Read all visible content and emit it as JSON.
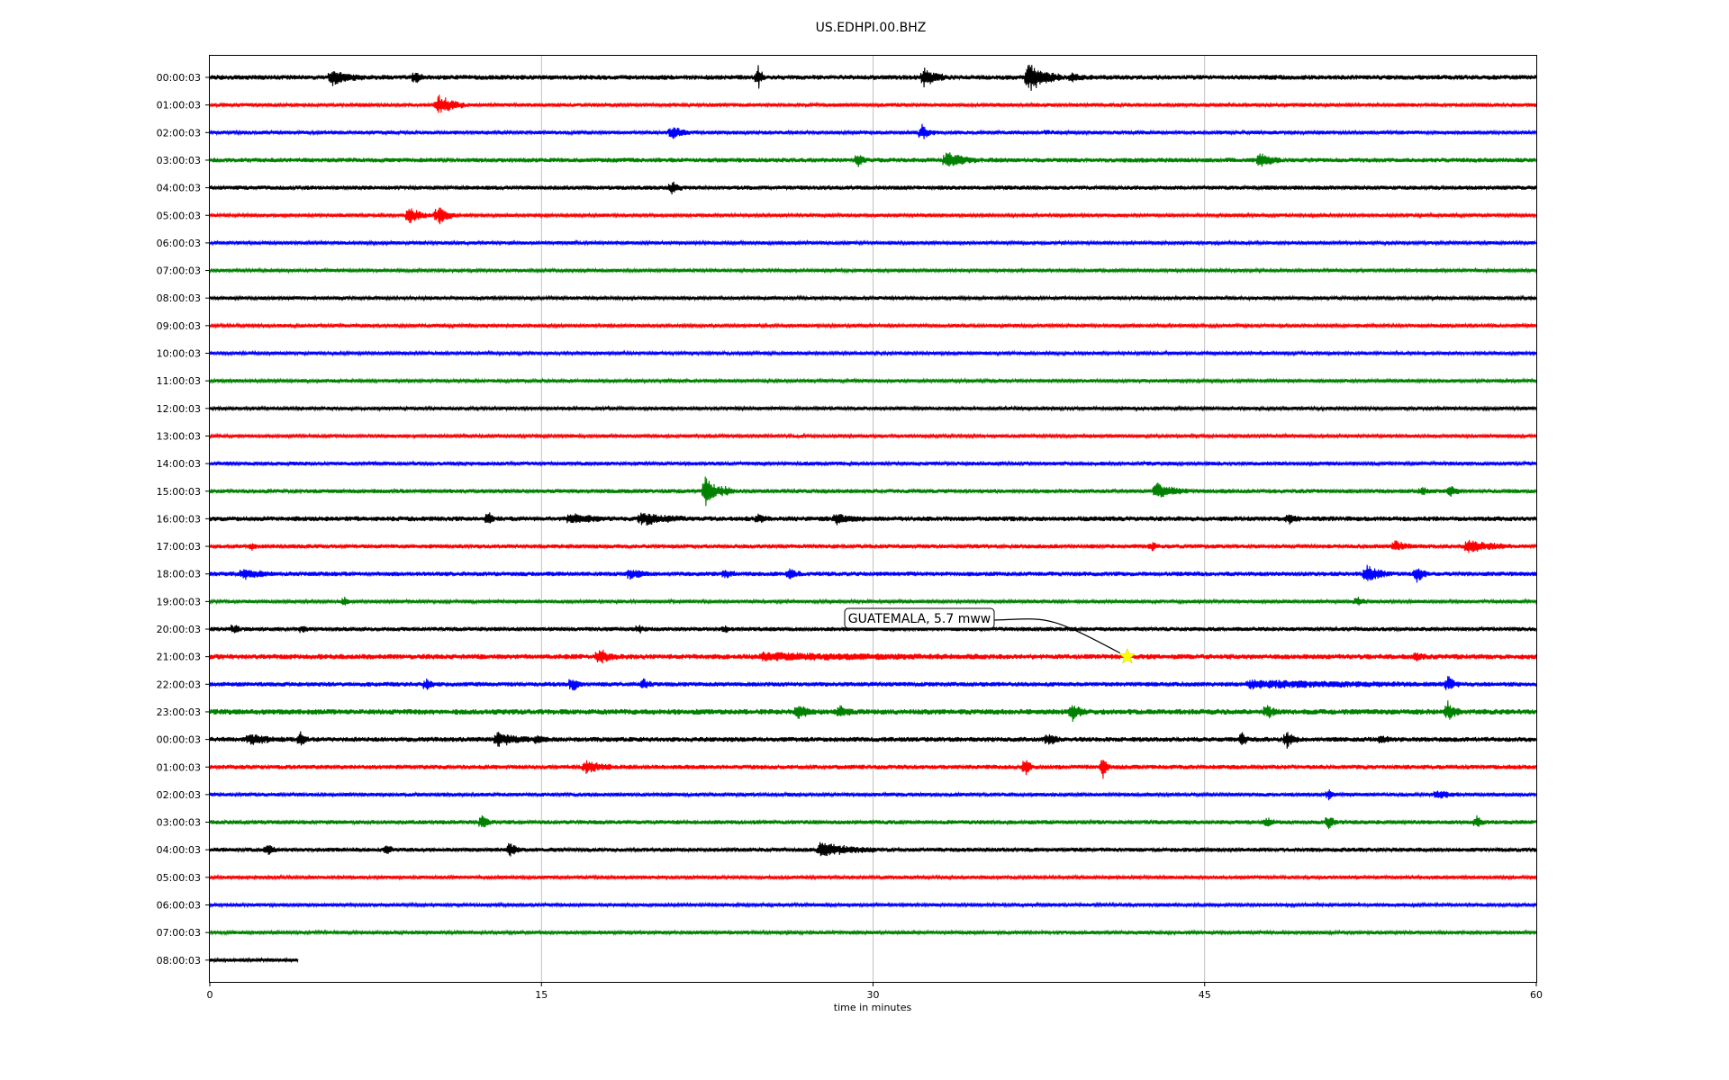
{
  "chart_data": {
    "type": "line",
    "title": "US.EDHPI.00.BHZ",
    "xlabel": "time in minutes",
    "ylabel": "",
    "xlim": [
      0,
      60
    ],
    "x_ticks": [
      0,
      15,
      30,
      45,
      60
    ],
    "x_tick_labels": [
      "0",
      "15",
      "30",
      "45",
      "60"
    ],
    "grid": "vertical",
    "trace_colors": [
      "#000000",
      "#ff0000",
      "#0000ff",
      "#008000"
    ],
    "rows": [
      {
        "label": "00:00:03",
        "end_min": 60,
        "noise": 0.28,
        "events": [
          {
            "t": 5.5,
            "a": 0.9,
            "w": 1.5
          },
          {
            "t": 9.3,
            "a": 0.8,
            "w": 0.4
          },
          {
            "t": 24.8,
            "a": 1.6,
            "w": 0.3
          },
          {
            "t": 32.3,
            "a": 1.2,
            "w": 1.0
          },
          {
            "t": 37.0,
            "a": 1.8,
            "w": 1.5
          },
          {
            "t": 39.0,
            "a": 0.6,
            "w": 0.5
          }
        ]
      },
      {
        "label": "01:00:03",
        "end_min": 60,
        "noise": 0.22,
        "events": [
          {
            "t": 10.3,
            "a": 1.4,
            "w": 1.2
          }
        ]
      },
      {
        "label": "02:00:03",
        "end_min": 60,
        "noise": 0.22,
        "events": [
          {
            "t": 20.9,
            "a": 0.9,
            "w": 0.8
          },
          {
            "t": 32.2,
            "a": 0.9,
            "w": 0.6
          },
          {
            "t": 37.9,
            "a": 0.3,
            "w": 0.3
          }
        ]
      },
      {
        "label": "03:00:03",
        "end_min": 60,
        "noise": 0.26,
        "events": [
          {
            "t": 29.3,
            "a": 0.9,
            "w": 0.4
          },
          {
            "t": 33.3,
            "a": 1.0,
            "w": 1.4
          },
          {
            "t": 47.5,
            "a": 0.9,
            "w": 0.9
          }
        ]
      },
      {
        "label": "04:00:03",
        "end_min": 60,
        "noise": 0.24,
        "events": [
          {
            "t": 20.9,
            "a": 0.8,
            "w": 0.5
          }
        ]
      },
      {
        "label": "05:00:03",
        "end_min": 60,
        "noise": 0.2,
        "events": [
          {
            "t": 9.0,
            "a": 1.0,
            "w": 1.0
          },
          {
            "t": 10.3,
            "a": 1.3,
            "w": 0.8
          }
        ]
      },
      {
        "label": "06:00:03",
        "end_min": 60,
        "noise": 0.2,
        "events": []
      },
      {
        "label": "07:00:03",
        "end_min": 60,
        "noise": 0.2,
        "events": []
      },
      {
        "label": "08:00:03",
        "end_min": 60,
        "noise": 0.2,
        "events": []
      },
      {
        "label": "09:00:03",
        "end_min": 60,
        "noise": 0.2,
        "events": []
      },
      {
        "label": "10:00:03",
        "end_min": 60,
        "noise": 0.2,
        "events": []
      },
      {
        "label": "11:00:03",
        "end_min": 60,
        "noise": 0.2,
        "events": []
      },
      {
        "label": "12:00:03",
        "end_min": 60,
        "noise": 0.2,
        "events": []
      },
      {
        "label": "13:00:03",
        "end_min": 60,
        "noise": 0.2,
        "events": []
      },
      {
        "label": "14:00:03",
        "end_min": 60,
        "noise": 0.22,
        "events": []
      },
      {
        "label": "15:00:03",
        "end_min": 60,
        "noise": 0.24,
        "events": [
          {
            "t": 22.4,
            "a": 2.0,
            "w": 0.8
          },
          {
            "t": 23.3,
            "a": 0.6,
            "w": 0.5
          },
          {
            "t": 42.8,
            "a": 1.1,
            "w": 1.4
          },
          {
            "t": 54.8,
            "a": 0.5,
            "w": 0.5
          },
          {
            "t": 56.1,
            "a": 0.8,
            "w": 0.5
          }
        ]
      },
      {
        "label": "16:00:03",
        "end_min": 60,
        "noise": 0.28,
        "events": [
          {
            "t": 12.6,
            "a": 0.8,
            "w": 0.3
          },
          {
            "t": 16.3,
            "a": 0.6,
            "w": 1.5
          },
          {
            "t": 19.5,
            "a": 0.8,
            "w": 2.0
          },
          {
            "t": 24.8,
            "a": 0.6,
            "w": 0.5
          },
          {
            "t": 28.3,
            "a": 0.6,
            "w": 1.3
          },
          {
            "t": 48.8,
            "a": 0.6,
            "w": 0.6
          }
        ]
      },
      {
        "label": "17:00:03",
        "end_min": 60,
        "noise": 0.24,
        "events": [
          {
            "t": 1.9,
            "a": 0.5,
            "w": 0.3
          },
          {
            "t": 42.6,
            "a": 0.5,
            "w": 0.4
          },
          {
            "t": 53.6,
            "a": 0.7,
            "w": 0.8
          },
          {
            "t": 56.9,
            "a": 0.7,
            "w": 2.0
          }
        ]
      },
      {
        "label": "18:00:03",
        "end_min": 60,
        "noise": 0.26,
        "events": [
          {
            "t": 1.5,
            "a": 0.6,
            "w": 1.5
          },
          {
            "t": 19.0,
            "a": 0.7,
            "w": 0.8
          },
          {
            "t": 23.3,
            "a": 0.5,
            "w": 0.5
          },
          {
            "t": 26.2,
            "a": 0.6,
            "w": 0.6
          },
          {
            "t": 52.3,
            "a": 1.0,
            "w": 1.2
          },
          {
            "t": 54.6,
            "a": 1.0,
            "w": 0.6
          }
        ]
      },
      {
        "label": "19:00:03",
        "end_min": 60,
        "noise": 0.2,
        "events": [
          {
            "t": 6.1,
            "a": 0.5,
            "w": 0.3
          },
          {
            "t": 51.9,
            "a": 0.6,
            "w": 0.4
          }
        ]
      },
      {
        "label": "20:00:03",
        "end_min": 60,
        "noise": 0.24,
        "events": [
          {
            "t": 1.1,
            "a": 0.7,
            "w": 0.3
          },
          {
            "t": 4.2,
            "a": 0.5,
            "w": 0.3
          },
          {
            "t": 19.4,
            "a": 0.5,
            "w": 0.4
          },
          {
            "t": 23.3,
            "a": 0.5,
            "w": 0.2
          }
        ]
      },
      {
        "label": "21:00:03",
        "end_min": 60,
        "noise": 0.3,
        "events": [
          {
            "t": 17.6,
            "a": 1.0,
            "w": 0.8
          },
          {
            "t": 25.0,
            "a": 0.35,
            "w": 10.0
          },
          {
            "t": 54.6,
            "a": 0.5,
            "w": 0.5
          }
        ]
      },
      {
        "label": "22:00:03",
        "end_min": 60,
        "noise": 0.26,
        "events": [
          {
            "t": 9.8,
            "a": 0.8,
            "w": 0.4
          },
          {
            "t": 16.4,
            "a": 1.1,
            "w": 0.4
          },
          {
            "t": 19.6,
            "a": 0.6,
            "w": 0.5
          },
          {
            "t": 47.0,
            "a": 0.4,
            "w": 9.0
          },
          {
            "t": 56.0,
            "a": 1.0,
            "w": 0.5
          }
        ]
      },
      {
        "label": "23:00:03",
        "end_min": 60,
        "noise": 0.32,
        "events": [
          {
            "t": 26.6,
            "a": 1.0,
            "w": 0.6
          },
          {
            "t": 28.5,
            "a": 0.7,
            "w": 0.6
          },
          {
            "t": 39.0,
            "a": 1.1,
            "w": 0.6
          },
          {
            "t": 47.8,
            "a": 0.8,
            "w": 0.6
          },
          {
            "t": 56.0,
            "a": 1.1,
            "w": 0.6
          }
        ]
      },
      {
        "label": "00:00:03",
        "end_min": 60,
        "noise": 0.28,
        "events": [
          {
            "t": 1.8,
            "a": 0.6,
            "w": 1.5
          },
          {
            "t": 4.1,
            "a": 0.8,
            "w": 0.4
          },
          {
            "t": 13.0,
            "a": 0.8,
            "w": 1.5
          },
          {
            "t": 14.8,
            "a": 0.6,
            "w": 0.5
          },
          {
            "t": 37.9,
            "a": 0.8,
            "w": 0.6
          },
          {
            "t": 46.7,
            "a": 1.0,
            "w": 0.3
          },
          {
            "t": 48.7,
            "a": 1.0,
            "w": 0.6
          },
          {
            "t": 53.0,
            "a": 0.5,
            "w": 0.5
          }
        ]
      },
      {
        "label": "01:00:03",
        "end_min": 60,
        "noise": 0.26,
        "events": [
          {
            "t": 17.0,
            "a": 0.8,
            "w": 1.2
          },
          {
            "t": 36.9,
            "a": 1.3,
            "w": 0.3
          },
          {
            "t": 40.4,
            "a": 1.4,
            "w": 0.3
          }
        ]
      },
      {
        "label": "02:00:03",
        "end_min": 60,
        "noise": 0.22,
        "events": [
          {
            "t": 50.6,
            "a": 0.6,
            "w": 0.4
          },
          {
            "t": 55.5,
            "a": 0.5,
            "w": 1.0
          }
        ]
      },
      {
        "label": "03:00:03",
        "end_min": 60,
        "noise": 0.24,
        "events": [
          {
            "t": 12.3,
            "a": 0.9,
            "w": 0.4
          },
          {
            "t": 47.8,
            "a": 0.6,
            "w": 0.4
          },
          {
            "t": 50.6,
            "a": 1.0,
            "w": 0.4
          },
          {
            "t": 57.3,
            "a": 0.8,
            "w": 0.4
          }
        ]
      },
      {
        "label": "04:00:03",
        "end_min": 60,
        "noise": 0.24,
        "events": [
          {
            "t": 2.6,
            "a": 0.6,
            "w": 0.5
          },
          {
            "t": 8.0,
            "a": 0.6,
            "w": 0.4
          },
          {
            "t": 13.6,
            "a": 1.3,
            "w": 0.4
          },
          {
            "t": 27.6,
            "a": 0.9,
            "w": 2.5
          }
        ]
      },
      {
        "label": "05:00:03",
        "end_min": 60,
        "noise": 0.2,
        "events": []
      },
      {
        "label": "06:00:03",
        "end_min": 60,
        "noise": 0.2,
        "events": []
      },
      {
        "label": "07:00:03",
        "end_min": 60,
        "noise": 0.2,
        "events": []
      },
      {
        "label": "08:00:03",
        "end_min": 4.0,
        "noise": 0.2,
        "events": []
      }
    ],
    "annotations": [
      {
        "text": "GUATEMALA, 5.7 mww",
        "row": 21,
        "t": 41.5,
        "marker": "star",
        "marker_color": "#ffff00"
      }
    ]
  }
}
